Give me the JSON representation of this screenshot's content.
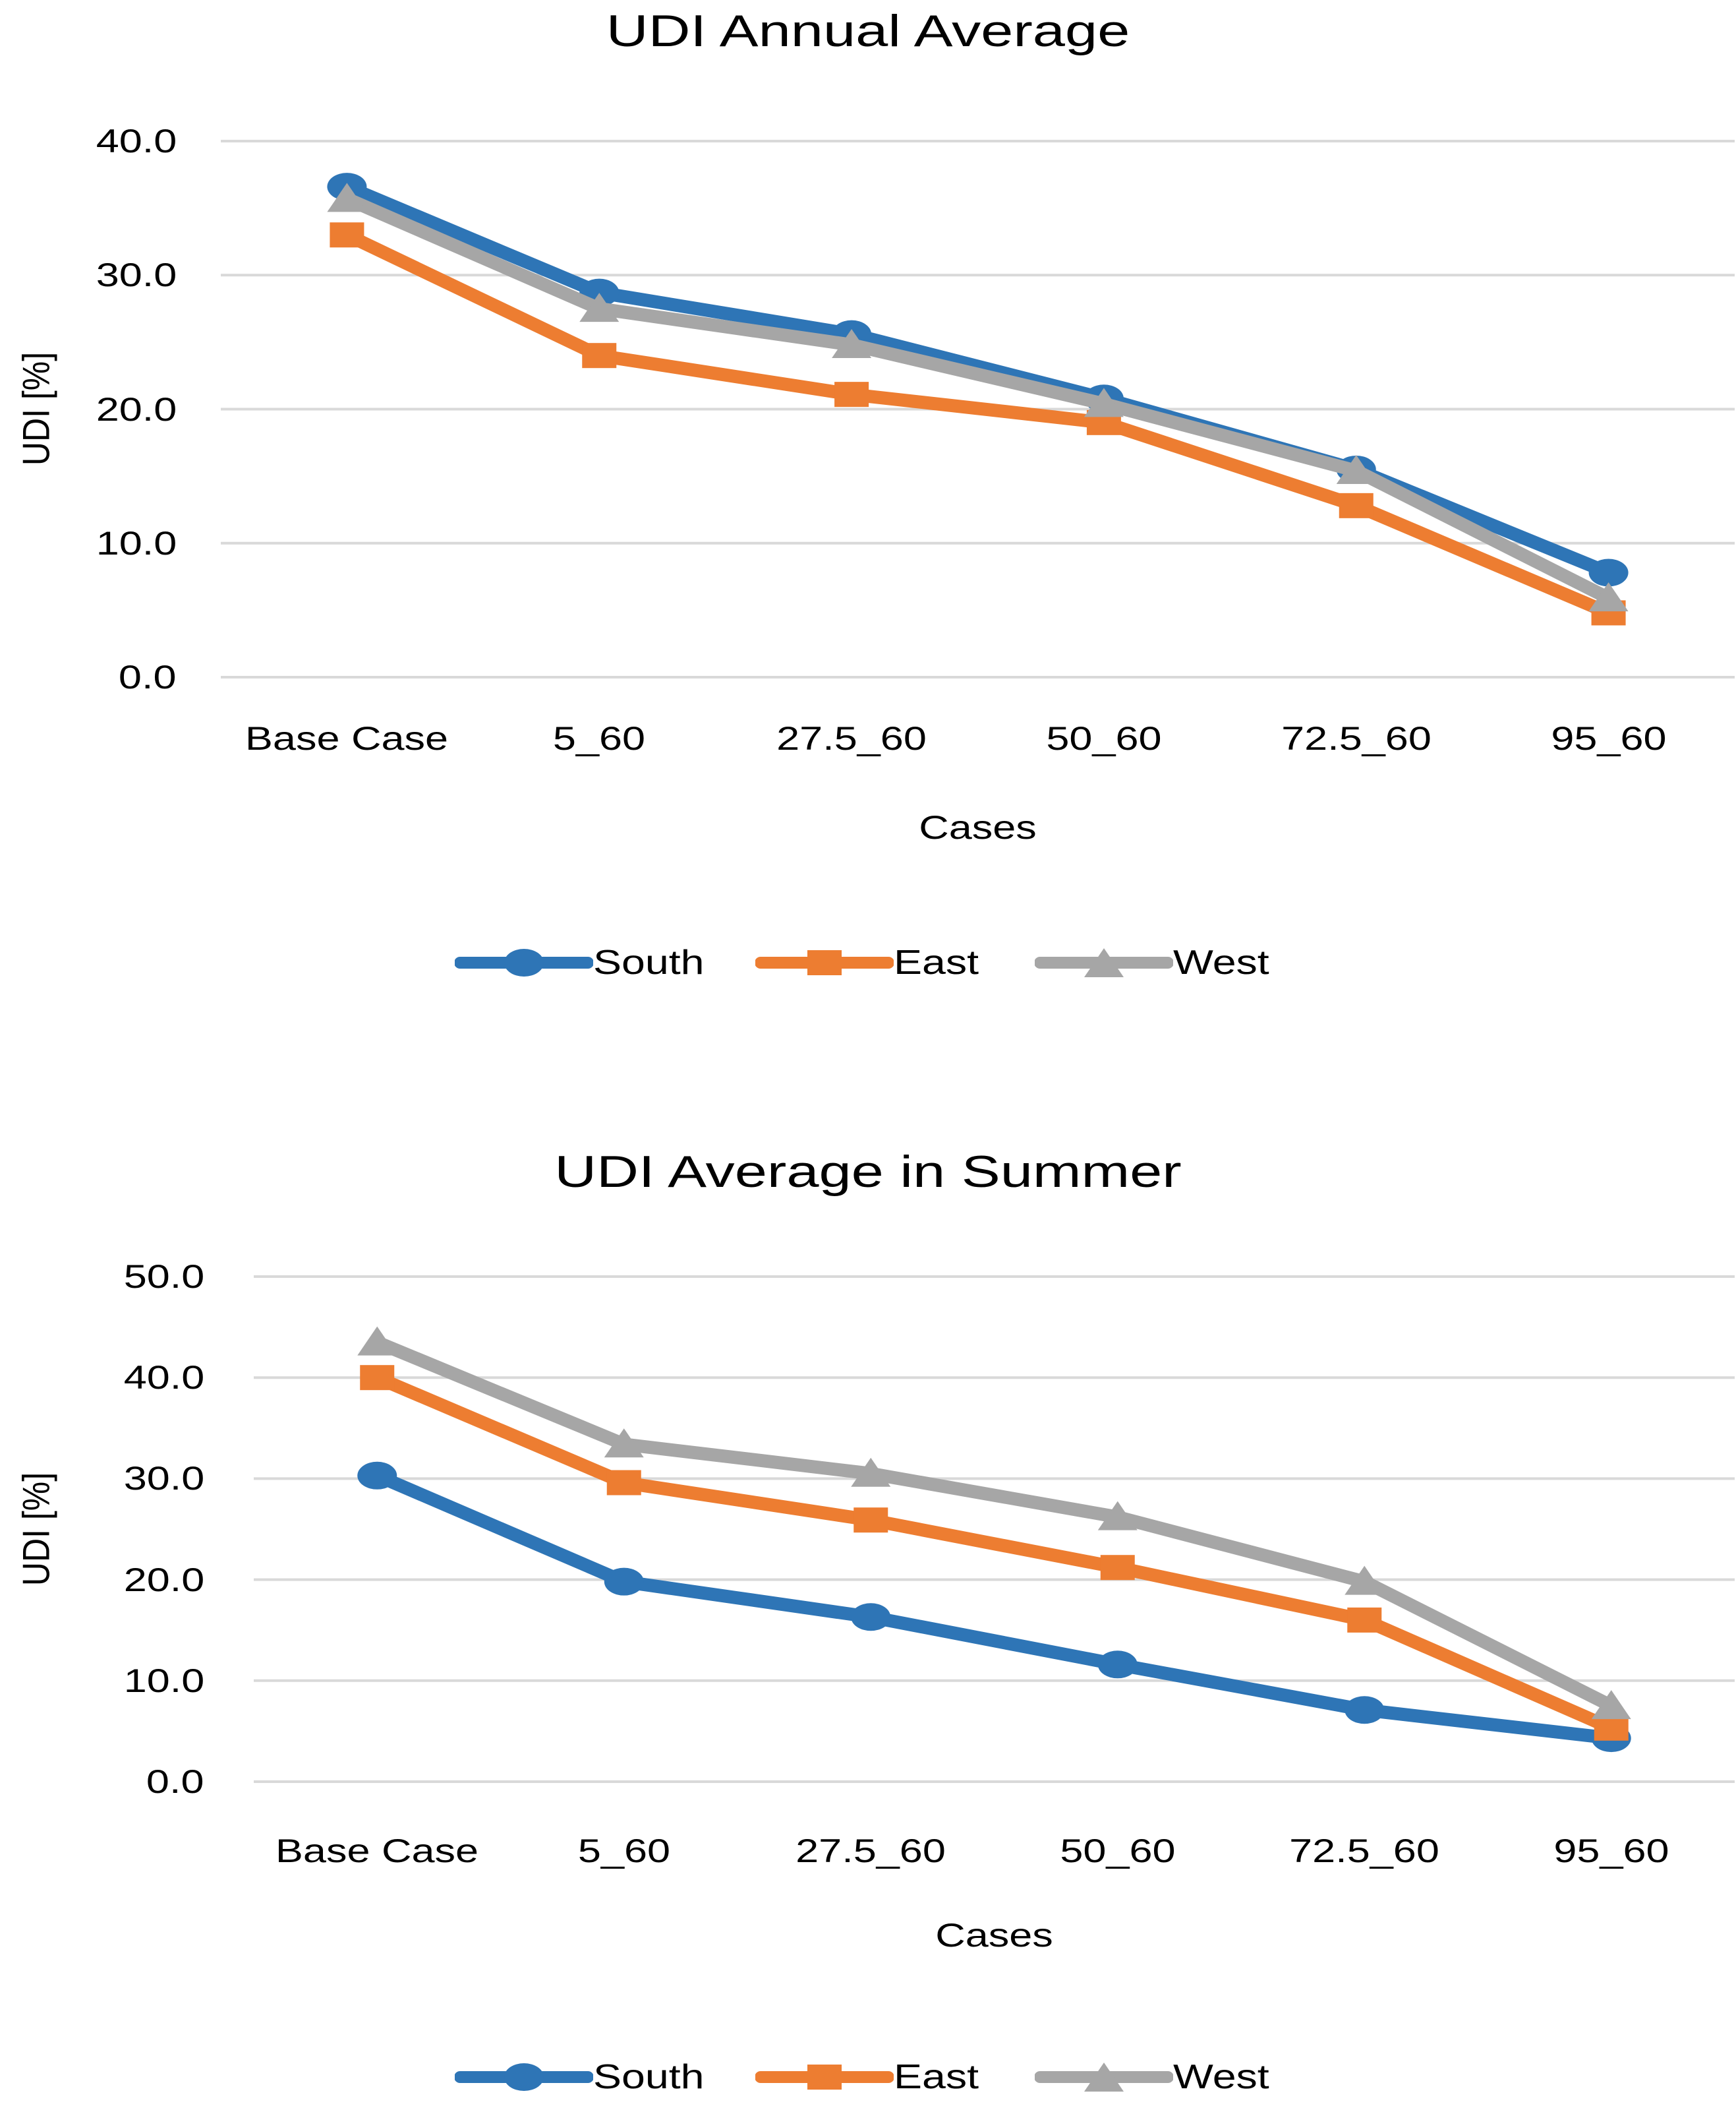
{
  "colors": {
    "south": "#2E75B6",
    "east": "#ED7D31",
    "west": "#A6A6A6",
    "gridline": "#D9D9D9",
    "text": "#000000",
    "background": "#FFFFFF"
  },
  "chart_data": [
    {
      "type": "line",
      "title": "UDI Annual Average",
      "xlabel": "Cases",
      "ylabel": "UDI [%]",
      "categories": [
        "Base Case",
        "5_60",
        "27.5_60",
        "50_60",
        "72.5_60",
        "95_60"
      ],
      "series": [
        {
          "name": "South",
          "marker": "circle",
          "color_key": "south",
          "values": [
            36.6,
            28.7,
            25.6,
            20.8,
            15.5,
            7.8
          ]
        },
        {
          "name": "East",
          "marker": "square",
          "color_key": "east",
          "values": [
            33.0,
            24.0,
            21.1,
            19.0,
            12.8,
            4.8
          ]
        },
        {
          "name": "West",
          "marker": "triangle",
          "color_key": "west",
          "values": [
            35.7,
            27.5,
            24.8,
            20.4,
            15.4,
            5.9
          ]
        }
      ],
      "ylim": [
        0,
        40
      ],
      "ytick_labels": [
        "0.0",
        "10.0",
        "20.0",
        "30.0",
        "40.0"
      ],
      "grid": true,
      "legend_position": "bottom"
    },
    {
      "type": "line",
      "title": "UDI Average in Summer",
      "xlabel": "Cases",
      "ylabel": "UDI [%]",
      "categories": [
        "Base Case",
        "5_60",
        "27.5_60",
        "50_60",
        "72.5_60",
        "95_60"
      ],
      "series": [
        {
          "name": "South",
          "marker": "circle",
          "color_key": "south",
          "values": [
            30.3,
            19.8,
            16.3,
            11.6,
            7.1,
            4.3
          ]
        },
        {
          "name": "East",
          "marker": "square",
          "color_key": "east",
          "values": [
            40.0,
            29.6,
            25.9,
            21.2,
            16.0,
            5.3
          ]
        },
        {
          "name": "West",
          "marker": "triangle",
          "color_key": "west",
          "values": [
            43.5,
            33.4,
            30.5,
            26.2,
            19.8,
            7.5
          ]
        }
      ],
      "ylim": [
        0,
        50
      ],
      "ytick_labels": [
        "0.0",
        "10.0",
        "20.0",
        "30.0",
        "40.0",
        "50.0"
      ],
      "grid": true,
      "legend_position": "bottom"
    }
  ]
}
